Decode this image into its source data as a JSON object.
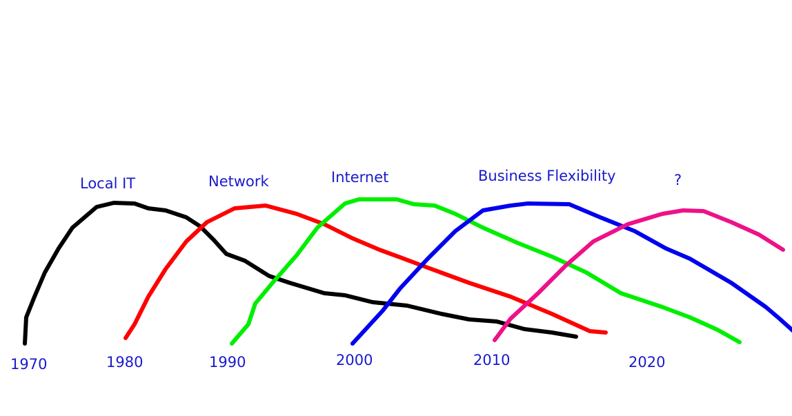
{
  "curves": [
    {
      "label": "Local IT",
      "start": "1970"
    },
    {
      "label": "Network",
      "start": "1980"
    },
    {
      "label": "Internet",
      "start": "1990"
    },
    {
      "label": "Business Flexibility",
      "start": "2000"
    },
    {
      "label": "?",
      "start": "2010"
    }
  ],
  "axis_labels": [
    "1970",
    "1980",
    "1990",
    "2000",
    "2010",
    "2020"
  ]
}
